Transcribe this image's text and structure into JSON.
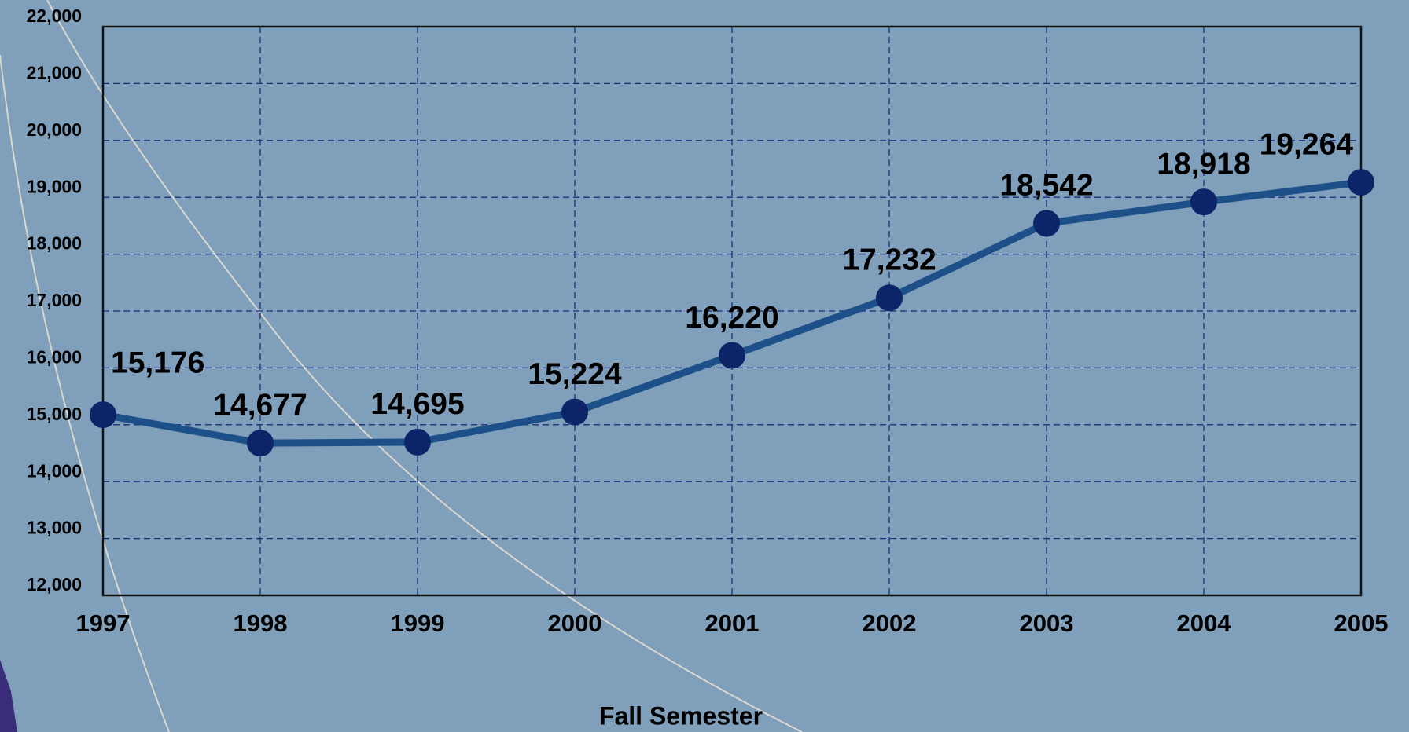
{
  "chart_data": {
    "type": "line",
    "x_label": "Fall Semester",
    "categories": [
      "1997",
      "1998",
      "1999",
      "2000",
      "2001",
      "2002",
      "2003",
      "2004",
      "2005"
    ],
    "series": [
      {
        "color": "#1d4f88",
        "values": [
          15176,
          14677,
          14695,
          15224,
          16220,
          17232,
          18542,
          18918,
          19264
        ],
        "value_labels": [
          "15,176",
          "14,677",
          "14,695",
          "15,224",
          "16,220",
          "17,232",
          "18,542",
          "18,918",
          "19,264"
        ]
      }
    ],
    "marker_color": "#0c2468",
    "ylim": [
      12000,
      22000
    ],
    "yticks": [
      {
        "value": 12000,
        "label": "12,000"
      },
      {
        "value": 13000,
        "label": "13,000"
      },
      {
        "value": 14000,
        "label": "14,000"
      },
      {
        "value": 15000,
        "label": "15,000"
      },
      {
        "value": 16000,
        "label": "16,000"
      },
      {
        "value": 17000,
        "label": "17,000"
      },
      {
        "value": 18000,
        "label": "18,000"
      },
      {
        "value": 19000,
        "label": "19,000"
      },
      {
        "value": 20000,
        "label": "20,000"
      },
      {
        "value": 21000,
        "label": "21,000"
      },
      {
        "value": 22000,
        "label": "22,000"
      }
    ],
    "grid": true
  }
}
